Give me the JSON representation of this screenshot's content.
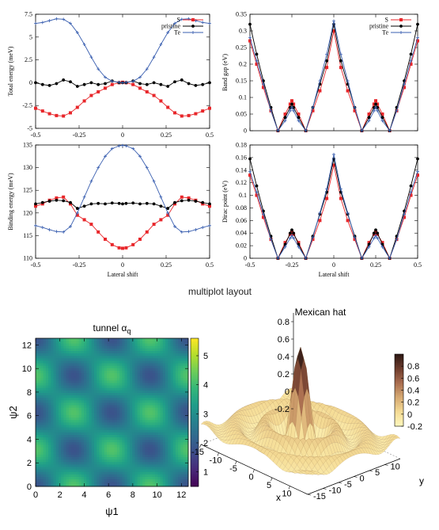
{
  "top_panel": {
    "caption": "multiplot layout",
    "xlabel": "Lateral shift",
    "legend": [
      {
        "name": "S",
        "color": "#e8262a",
        "marker": "square"
      },
      {
        "name": "pristine",
        "color": "#000000",
        "marker": "circle"
      },
      {
        "name": "Te",
        "color": "#3a5fb0",
        "marker": "plus"
      }
    ]
  },
  "bottom_left": {
    "title_main": "tunnel α",
    "title_sub": "q"
  },
  "bottom_right": {
    "title": "Mexican hat"
  },
  "chart_data": [
    {
      "type": "line",
      "id": "total-energy",
      "ylabel": "Total energy (meV)",
      "xlim": [
        -0.5,
        0.5
      ],
      "ylim": [
        -5,
        7.5
      ],
      "xticks": [
        -0.5,
        -0.25,
        0,
        0.25,
        0.5
      ],
      "xtick_labels": [
        "-0.5",
        "-0.25",
        "0",
        "0.25",
        "0.5"
      ],
      "yticks": [
        -5,
        -2.5,
        0,
        2.5,
        5,
        7.5
      ],
      "ytick_labels": [
        "-5",
        "-2.5",
        "0",
        "2.5",
        "5",
        "7.5"
      ],
      "x": [
        -0.5,
        -0.46,
        -0.42,
        -0.38,
        -0.34,
        -0.3,
        -0.26,
        -0.22,
        -0.18,
        -0.14,
        -0.1,
        -0.06,
        -0.02,
        0,
        0.02,
        0.06,
        0.1,
        0.14,
        0.18,
        0.22,
        0.26,
        0.3,
        0.34,
        0.38,
        0.42,
        0.46,
        0.5
      ],
      "series": [
        {
          "name": "S",
          "values": [
            -2.8,
            -3.1,
            -3.4,
            -3.6,
            -3.65,
            -3.3,
            -2.7,
            -2.0,
            -1.4,
            -1.0,
            -0.6,
            -0.2,
            0,
            0.05,
            0,
            -0.2,
            -0.6,
            -1.0,
            -1.4,
            -2.0,
            -2.7,
            -3.3,
            -3.65,
            -3.6,
            -3.4,
            -3.1,
            -2.8
          ]
        },
        {
          "name": "pristine",
          "values": [
            0,
            -0.2,
            -0.3,
            -0.1,
            0.3,
            0.1,
            -0.4,
            -0.2,
            0,
            -0.2,
            -0.1,
            0.2,
            0,
            0,
            0,
            0.2,
            -0.1,
            -0.2,
            0,
            -0.2,
            -0.4,
            0.1,
            0.3,
            -0.1,
            -0.3,
            -0.2,
            0
          ]
        },
        {
          "name": "Te",
          "values": [
            6.5,
            6.6,
            6.8,
            7.0,
            6.95,
            6.5,
            5.5,
            4.2,
            2.8,
            1.5,
            0.6,
            0.15,
            0.05,
            0,
            0.05,
            0.15,
            0.6,
            1.5,
            2.8,
            4.2,
            5.5,
            6.5,
            6.95,
            7.0,
            6.8,
            6.6,
            6.5
          ]
        }
      ]
    },
    {
      "type": "line",
      "id": "band-gap",
      "ylabel": "Band gap (eV)",
      "xlim": [
        -0.5,
        0.5
      ],
      "ylim": [
        0,
        0.35
      ],
      "xticks": [
        -0.5,
        -0.25,
        0,
        0.25,
        0.5
      ],
      "xtick_labels": [
        "",
        "",
        "",
        "",
        ""
      ],
      "yticks": [
        0,
        0.05,
        0.1,
        0.15,
        0.2,
        0.25,
        0.3,
        0.35
      ],
      "ytick_labels": [
        "0",
        "0.05",
        "0.1",
        "0.15",
        "0.2",
        "0.25",
        "0.3",
        "0.35"
      ],
      "x": [
        -0.5,
        -0.46,
        -0.42,
        -0.375,
        -0.333,
        -0.29,
        -0.26,
        -0.25,
        -0.24,
        -0.21,
        -0.167,
        -0.125,
        -0.083,
        -0.042,
        0,
        0.042,
        0.083,
        0.125,
        0.167,
        0.21,
        0.24,
        0.25,
        0.26,
        0.29,
        0.333,
        0.375,
        0.42,
        0.46,
        0.5
      ],
      "series": [
        {
          "name": "S",
          "values": [
            0.27,
            0.2,
            0.13,
            0.06,
            0,
            0.05,
            0.08,
            0.09,
            0.08,
            0.05,
            0,
            0.06,
            0.12,
            0.19,
            0.3,
            0.19,
            0.12,
            0.06,
            0,
            0.05,
            0.08,
            0.09,
            0.08,
            0.05,
            0,
            0.06,
            0.13,
            0.2,
            0.27
          ]
        },
        {
          "name": "pristine",
          "values": [
            0.32,
            0.23,
            0.15,
            0.07,
            0,
            0.04,
            0.07,
            0.08,
            0.07,
            0.04,
            0,
            0.07,
            0.14,
            0.21,
            0.32,
            0.21,
            0.14,
            0.07,
            0,
            0.04,
            0.07,
            0.08,
            0.07,
            0.04,
            0,
            0.07,
            0.15,
            0.23,
            0.32
          ]
        },
        {
          "name": "Te",
          "values": [
            0.28,
            0.21,
            0.14,
            0.06,
            0,
            0.03,
            0.06,
            0.07,
            0.06,
            0.03,
            0,
            0.07,
            0.15,
            0.23,
            0.33,
            0.23,
            0.15,
            0.07,
            0,
            0.03,
            0.06,
            0.07,
            0.06,
            0.03,
            0,
            0.06,
            0.14,
            0.21,
            0.28
          ]
        }
      ]
    },
    {
      "type": "line",
      "id": "binding-energy",
      "ylabel": "Binding energy (meV)",
      "xlim": [
        -0.5,
        0.5
      ],
      "ylim": [
        110,
        135
      ],
      "xticks": [
        -0.5,
        -0.25,
        0,
        0.25,
        0.5
      ],
      "xtick_labels": [
        "-0.5",
        "-0.25",
        "0",
        "0.25",
        "0.5"
      ],
      "yticks": [
        110,
        115,
        120,
        125,
        130,
        135
      ],
      "ytick_labels": [
        "110",
        "115",
        "120",
        "125",
        "130",
        "135"
      ],
      "x": [
        -0.5,
        -0.46,
        -0.42,
        -0.38,
        -0.34,
        -0.3,
        -0.26,
        -0.22,
        -0.18,
        -0.14,
        -0.1,
        -0.06,
        -0.02,
        0,
        0.02,
        0.06,
        0.1,
        0.14,
        0.18,
        0.22,
        0.26,
        0.3,
        0.34,
        0.38,
        0.42,
        0.46,
        0.5
      ],
      "series": [
        {
          "name": "S",
          "values": [
            121.5,
            122,
            122.8,
            123.3,
            123.5,
            122,
            119.5,
            118.5,
            117.5,
            115.8,
            114.2,
            113,
            112.3,
            112.2,
            112.3,
            113,
            114.2,
            115.8,
            117.5,
            118.5,
            119.5,
            122,
            123.5,
            123.3,
            122.8,
            122,
            121.5
          ]
        },
        {
          "name": "pristine",
          "values": [
            122,
            122.3,
            122.6,
            122.8,
            122.7,
            122.3,
            121,
            121.5,
            122,
            122.1,
            122,
            122.2,
            122.1,
            122,
            122.1,
            122.2,
            122,
            122.1,
            122,
            121.5,
            121,
            122.3,
            122.7,
            122.8,
            122.6,
            122.3,
            122
          ]
        },
        {
          "name": "Te",
          "values": [
            117.2,
            116.8,
            116.3,
            115.9,
            115.8,
            117,
            120,
            123.5,
            127,
            130,
            132.5,
            134.2,
            134.8,
            134.9,
            134.8,
            134.2,
            132.5,
            130,
            127,
            123.5,
            120,
            117,
            115.8,
            115.9,
            116.3,
            116.8,
            117.2
          ]
        }
      ]
    },
    {
      "type": "line",
      "id": "dirac-point",
      "ylabel": "Dirac point (eV)",
      "xlim": [
        -0.5,
        0.5
      ],
      "ylim": [
        0,
        0.18
      ],
      "xticks": [
        -0.5,
        -0.25,
        0,
        0.25,
        0.5
      ],
      "xtick_labels": [
        "-0.5",
        "-0.25",
        "0",
        "0.25",
        "0.5"
      ],
      "yticks": [
        0,
        0.02,
        0.04,
        0.06,
        0.08,
        0.1,
        0.12,
        0.14,
        0.16,
        0.18
      ],
      "ytick_labels": [
        "0",
        "0.02",
        "0.04",
        "0.06",
        "0.08",
        "0.1",
        "0.12",
        "0.14",
        "0.16",
        "0.18"
      ],
      "x": [
        -0.5,
        -0.46,
        -0.42,
        -0.375,
        -0.333,
        -0.29,
        -0.26,
        -0.25,
        -0.24,
        -0.21,
        -0.167,
        -0.125,
        -0.083,
        -0.042,
        0,
        0.042,
        0.083,
        0.125,
        0.167,
        0.21,
        0.24,
        0.25,
        0.26,
        0.29,
        0.333,
        0.375,
        0.42,
        0.46,
        0.5
      ],
      "series": [
        {
          "name": "S",
          "values": [
            0.132,
            0.1,
            0.065,
            0.03,
            0,
            0.025,
            0.038,
            0.042,
            0.038,
            0.025,
            0,
            0.03,
            0.06,
            0.095,
            0.148,
            0.095,
            0.06,
            0.03,
            0,
            0.025,
            0.038,
            0.042,
            0.038,
            0.025,
            0,
            0.03,
            0.065,
            0.1,
            0.132
          ]
        },
        {
          "name": "pristine",
          "values": [
            0.158,
            0.115,
            0.075,
            0.035,
            0,
            0.022,
            0.04,
            0.045,
            0.04,
            0.022,
            0,
            0.035,
            0.07,
            0.105,
            0.158,
            0.105,
            0.07,
            0.035,
            0,
            0.022,
            0.04,
            0.045,
            0.04,
            0.022,
            0,
            0.035,
            0.075,
            0.115,
            0.158
          ]
        },
        {
          "name": "Te",
          "values": [
            0.138,
            0.105,
            0.07,
            0.03,
            0,
            0.018,
            0.032,
            0.036,
            0.032,
            0.018,
            0,
            0.033,
            0.072,
            0.11,
            0.165,
            0.11,
            0.072,
            0.033,
            0,
            0.018,
            0.032,
            0.036,
            0.032,
            0.018,
            0,
            0.03,
            0.07,
            0.105,
            0.138
          ]
        }
      ]
    },
    {
      "type": "heatmap",
      "id": "tunnel",
      "xlabel": "ψ1",
      "ylabel": "ψ2",
      "xlim": [
        0,
        12.566
      ],
      "ylim": [
        0,
        12.566
      ],
      "xticks": [
        0,
        2,
        4,
        6,
        8,
        10,
        12
      ],
      "yticks": [
        0,
        2,
        4,
        6,
        8,
        10,
        12
      ],
      "colorbar_ticks": [
        1,
        2,
        3,
        4,
        5
      ],
      "zlim": [
        0.5,
        5.6
      ],
      "colormap": "viridis"
    },
    {
      "type": "surface",
      "id": "mexican-hat",
      "xlabel": "x",
      "ylabel": "y",
      "xlim": [
        -15,
        15
      ],
      "ylim": [
        -15,
        15
      ],
      "zlim": [
        -0.2,
        1
      ],
      "xticks": [
        -15,
        -10,
        -5,
        0,
        5,
        10
      ],
      "yticks": [
        -15,
        -10,
        -5,
        0,
        5,
        10
      ],
      "zticks": [
        -0.2,
        0,
        0.2,
        0.4,
        0.6,
        0.8
      ],
      "colorbar_ticks": [
        -0.2,
        0,
        0.2,
        0.4,
        0.6,
        0.8
      ]
    }
  ]
}
